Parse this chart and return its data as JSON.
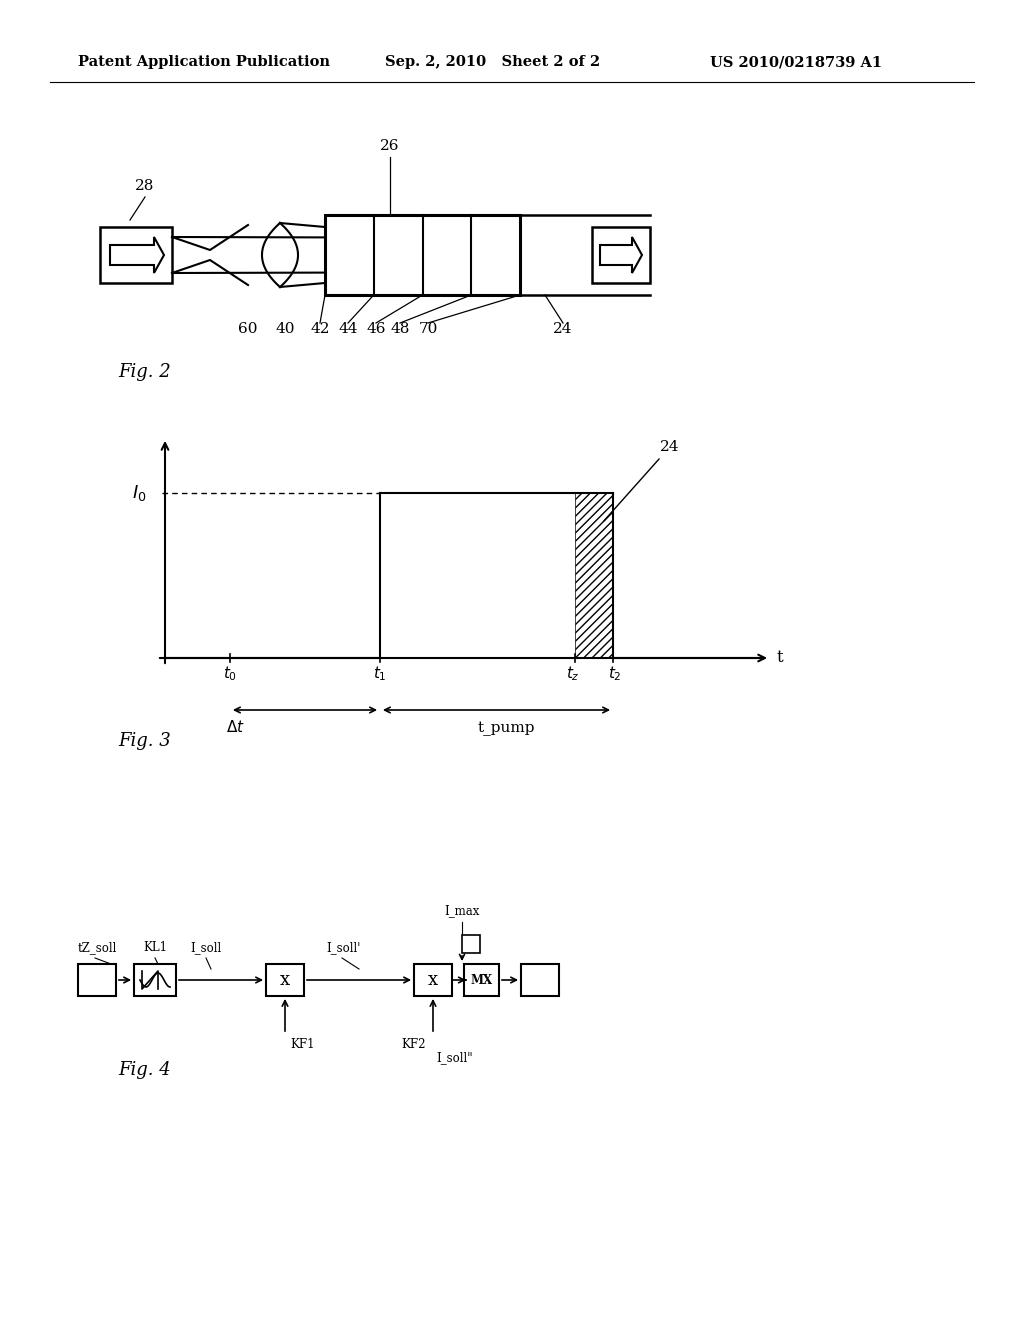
{
  "bg_color": "#ffffff",
  "header_left": "Patent Application Publication",
  "header_center": "Sep. 2, 2010   Sheet 2 of 2",
  "header_right": "US 2010/0218739 A1",
  "fig2_label": "Fig. 2",
  "fig3_label": "Fig. 3",
  "fig4_label": "Fig. 4"
}
